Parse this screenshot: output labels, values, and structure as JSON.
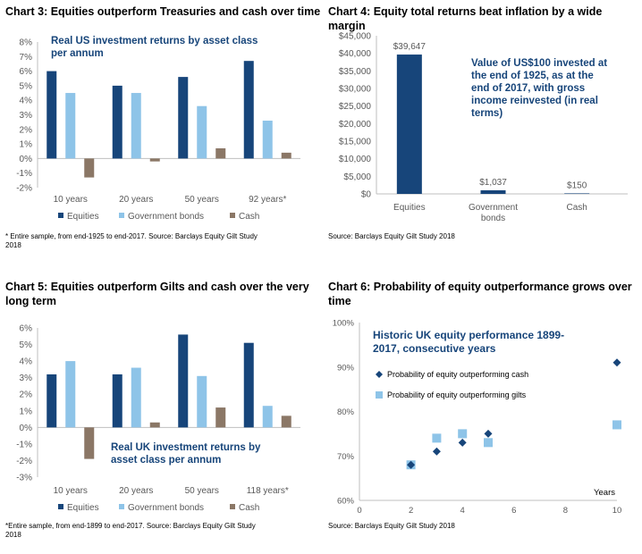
{
  "colors": {
    "equities": "#17457A",
    "government_bonds": "#8EC4E8",
    "cash": "#8B7766",
    "annotation": "#17457A",
    "axis": "#BFBFBF",
    "tick_text": "#595959"
  },
  "legend_labels": {
    "equities": "Equities",
    "government_bonds": "Government bonds",
    "cash": "Cash"
  },
  "chart3": {
    "title": "Chart 3: Equities outperform Treasuries and cash over time",
    "annotation": [
      "Real US investment returns by asset class",
      "per annum"
    ],
    "source": [
      "* Entire sample, from end-1925 to end-2017. Source: Barclays Equity Gilt Study",
      "2018"
    ]
  },
  "chart4": {
    "title": "Chart 4: Equity total returns beat inflation by a wide margin",
    "annotation": [
      "Value of US$100 invested at",
      "the end of 1925, as at the",
      "end of 2017, with gross",
      "income reinvested (in real",
      "terms)"
    ],
    "source": "Source: Barclays Equity Gilt Study 2018"
  },
  "chart5": {
    "title": [
      "Chart 5: Equities outperform Gilts and cash over the very",
      "long term"
    ],
    "annotation": [
      "Real UK investment returns by",
      "asset class per annum"
    ],
    "source": [
      "*Entire sample, from end-1899 to end-2017. Source: Barclays Equity Gilt Study",
      "2018"
    ]
  },
  "chart6": {
    "title": [
      "Chart 6: Probability of equity outperformance grows over",
      "time"
    ],
    "annotation": [
      "Historic UK equity performance 1899-",
      "2017, consecutive years"
    ],
    "legend": [
      "Probability of equity outperforming cash",
      "Probability of equity outperforming gilts"
    ],
    "source": "Source: Barclays Equity Gilt Study 2018"
  },
  "chart_data": [
    {
      "id": "chart3",
      "type": "bar",
      "categories": [
        "10 years",
        "20 years",
        "50 years",
        "92 years*"
      ],
      "series": [
        {
          "name": "Equities",
          "values": [
            6.0,
            5.0,
            5.6,
            6.7
          ]
        },
        {
          "name": "Government bonds",
          "values": [
            4.5,
            4.5,
            3.6,
            2.6
          ]
        },
        {
          "name": "Cash",
          "values": [
            -1.3,
            -0.2,
            0.7,
            0.4
          ]
        }
      ],
      "ylim": [
        -2,
        8
      ],
      "yticks": [
        "-2%",
        "-1%",
        "0%",
        "1%",
        "2%",
        "3%",
        "4%",
        "5%",
        "6%",
        "7%",
        "8%"
      ],
      "legend_position": "bottom",
      "grid": false
    },
    {
      "id": "chart4",
      "type": "bar",
      "categories": [
        "Equities",
        "Government bonds",
        "Cash"
      ],
      "values": [
        39647,
        1037,
        150
      ],
      "data_labels": [
        "$39,647",
        "$1,037",
        "$150"
      ],
      "ylim": [
        0,
        45000
      ],
      "yticks": [
        "$0",
        "$5,000",
        "$10,000",
        "$15,000",
        "$20,000",
        "$25,000",
        "$30,000",
        "$35,000",
        "$40,000",
        "$45,000"
      ],
      "grid": false
    },
    {
      "id": "chart5",
      "type": "bar",
      "categories": [
        "10 years",
        "20 years",
        "50 years",
        "118 years*"
      ],
      "series": [
        {
          "name": "Equities",
          "values": [
            3.2,
            3.2,
            5.6,
            5.1
          ]
        },
        {
          "name": "Government bonds",
          "values": [
            4.0,
            3.6,
            3.1,
            1.3
          ]
        },
        {
          "name": "Cash",
          "values": [
            -1.9,
            0.3,
            1.2,
            0.7
          ]
        }
      ],
      "ylim": [
        -3,
        6
      ],
      "yticks": [
        "-3%",
        "-2%",
        "-1%",
        "0%",
        "1%",
        "2%",
        "3%",
        "4%",
        "5%",
        "6%"
      ],
      "legend_position": "bottom",
      "grid": false
    },
    {
      "id": "chart6",
      "type": "scatter",
      "series": [
        {
          "name": "Probability of equity outperforming cash",
          "marker": "diamond",
          "points": [
            [
              2,
              68
            ],
            [
              3,
              71
            ],
            [
              4,
              73
            ],
            [
              5,
              75
            ],
            [
              10,
              91
            ]
          ]
        },
        {
          "name": "Probability of equity outperforming gilts",
          "marker": "square",
          "points": [
            [
              2,
              68
            ],
            [
              3,
              74
            ],
            [
              4,
              75
            ],
            [
              5,
              73
            ],
            [
              10,
              77
            ]
          ]
        }
      ],
      "xlim": [
        0,
        10
      ],
      "ylim": [
        60,
        100
      ],
      "xticks": [
        "0",
        "2",
        "4",
        "6",
        "8",
        "10"
      ],
      "yticks": [
        "60%",
        "70%",
        "80%",
        "90%",
        "100%"
      ],
      "xlabel": "Years",
      "legend_position": "top-left",
      "grid": false
    }
  ]
}
